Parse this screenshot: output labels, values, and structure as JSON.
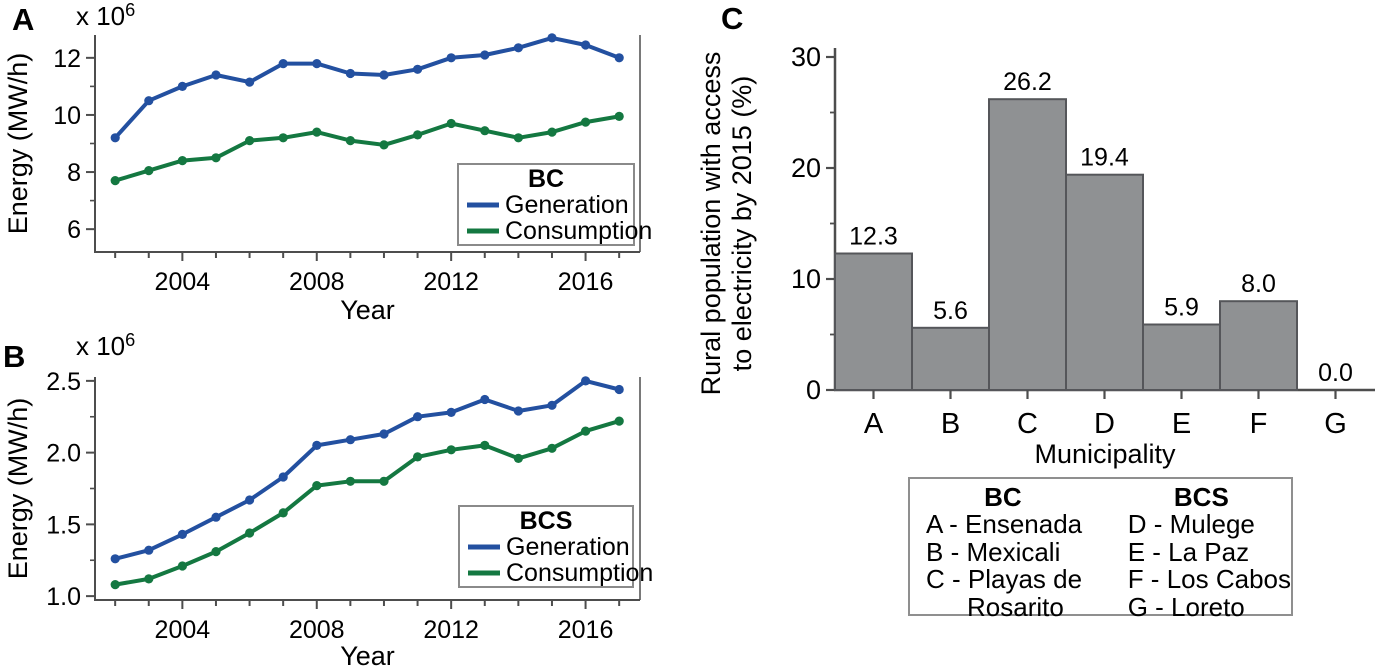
{
  "colors": {
    "generation": "#2350A0",
    "consumption": "#147841",
    "axis": "#4D4D4D",
    "bar_fill": "#8F9193",
    "bar_edge": "#55565A",
    "legend_frame": "#8A8A8A"
  },
  "chart_data": [
    {
      "id": "bc-energy",
      "type": "line",
      "panel_label": "A",
      "scale_label": {
        "base": "x 10",
        "exp": "6"
      },
      "xlabel": "Year",
      "ylabel": "Energy (MW/h)",
      "years": [
        2002,
        2003,
        2004,
        2005,
        2006,
        2007,
        2008,
        2009,
        2010,
        2011,
        2012,
        2013,
        2014,
        2015,
        2016,
        2017
      ],
      "xtick_values": [
        2004,
        2008,
        2012,
        2016
      ],
      "xtick_labels": [
        "2004",
        "2008",
        "2012",
        "2016"
      ],
      "ytick_values": [
        6,
        8,
        10,
        12
      ],
      "ytick_labels": [
        "6",
        "8",
        "10",
        "12"
      ],
      "ytick_minor": [
        7,
        9,
        11
      ],
      "ylim": [
        5.2,
        12.8
      ],
      "xlim": [
        2001.4,
        2017.62
      ],
      "legend": {
        "title": "BC",
        "entries": [
          {
            "label": "Generation",
            "color": "#2350A0"
          },
          {
            "label": "Consumption",
            "color": "#147841"
          }
        ]
      },
      "series": [
        {
          "name": "Generation",
          "color": "#2350A0",
          "values": [
            9.2,
            10.5,
            11.0,
            11.4,
            11.15,
            11.8,
            11.8,
            11.45,
            11.4,
            11.6,
            12.0,
            12.1,
            12.35,
            12.7,
            12.45,
            12.0
          ]
        },
        {
          "name": "Consumption",
          "color": "#147841",
          "values": [
            7.7,
            8.05,
            8.4,
            8.5,
            9.1,
            9.2,
            9.4,
            9.1,
            8.95,
            9.3,
            9.7,
            9.45,
            9.2,
            9.4,
            9.75,
            9.95
          ]
        }
      ]
    },
    {
      "id": "bcs-energy",
      "type": "line",
      "panel_label": "B",
      "scale_label": {
        "base": "x 10",
        "exp": "6"
      },
      "xlabel": "Year",
      "ylabel": "Energy (MW/h)",
      "years": [
        2002,
        2003,
        2004,
        2005,
        2006,
        2007,
        2008,
        2009,
        2010,
        2011,
        2012,
        2013,
        2014,
        2015,
        2016,
        2017
      ],
      "xtick_values": [
        2004,
        2008,
        2012,
        2016
      ],
      "xtick_labels": [
        "2004",
        "2008",
        "2012",
        "2016"
      ],
      "ytick_values": [
        1.0,
        1.5,
        2.0,
        2.5
      ],
      "ytick_labels": [
        "1.0",
        "1.5",
        "2.0",
        "2.5"
      ],
      "ytick_minor": [
        1.25,
        1.75,
        2.25
      ],
      "ylim": [
        0.973,
        2.527
      ],
      "xlim": [
        2001.4,
        2017.62
      ],
      "legend": {
        "title": "BCS",
        "entries": [
          {
            "label": "Generation",
            "color": "#2350A0"
          },
          {
            "label": "Consumption",
            "color": "#147841"
          }
        ]
      },
      "series": [
        {
          "name": "Generation",
          "color": "#2350A0",
          "values": [
            1.26,
            1.32,
            1.43,
            1.55,
            1.67,
            1.83,
            2.05,
            2.09,
            2.13,
            2.25,
            2.28,
            2.37,
            2.29,
            2.33,
            2.5,
            2.44
          ]
        },
        {
          "name": "Consumption",
          "color": "#147841",
          "values": [
            1.08,
            1.12,
            1.21,
            1.31,
            1.44,
            1.58,
            1.77,
            1.8,
            1.8,
            1.97,
            2.02,
            2.05,
            1.96,
            2.03,
            2.15,
            2.22
          ]
        }
      ]
    },
    {
      "id": "rural-access",
      "type": "bar",
      "panel_label": "C",
      "xlabel": "Municipality",
      "ylabel_lines": [
        "Rural population with access",
        "to electricity by 2015 (%)"
      ],
      "categories": [
        "A",
        "B",
        "C",
        "D",
        "E",
        "F",
        "G"
      ],
      "values": [
        12.3,
        5.6,
        26.2,
        19.4,
        5.9,
        8.0,
        0.0
      ],
      "value_labels": [
        "12.3",
        "5.6",
        "26.2",
        "19.4",
        "5.9",
        "8.0",
        "0.0"
      ],
      "ytick_values": [
        0,
        10,
        20,
        30
      ],
      "ytick_labels": [
        "0",
        "10",
        "20",
        "30"
      ],
      "ytick_minor": [
        5,
        15,
        25
      ],
      "ylim": [
        0,
        30
      ],
      "bar_color": "#8F9193",
      "bar_border": "#55565A"
    }
  ],
  "legend_box": {
    "columns": [
      {
        "title": "BC",
        "rows": [
          {
            "text": "A - Ensenada"
          },
          {
            "text": "B - Mexicali"
          },
          {
            "text": "C - Playas de"
          },
          {
            "text": "Rosarito",
            "indent": true
          }
        ]
      },
      {
        "title": "BCS",
        "rows": [
          {
            "text": "D - Mulege"
          },
          {
            "text": "E - La Paz"
          },
          {
            "text": "F - Los Cabos"
          },
          {
            "text": "G - Loreto"
          }
        ]
      }
    ]
  }
}
